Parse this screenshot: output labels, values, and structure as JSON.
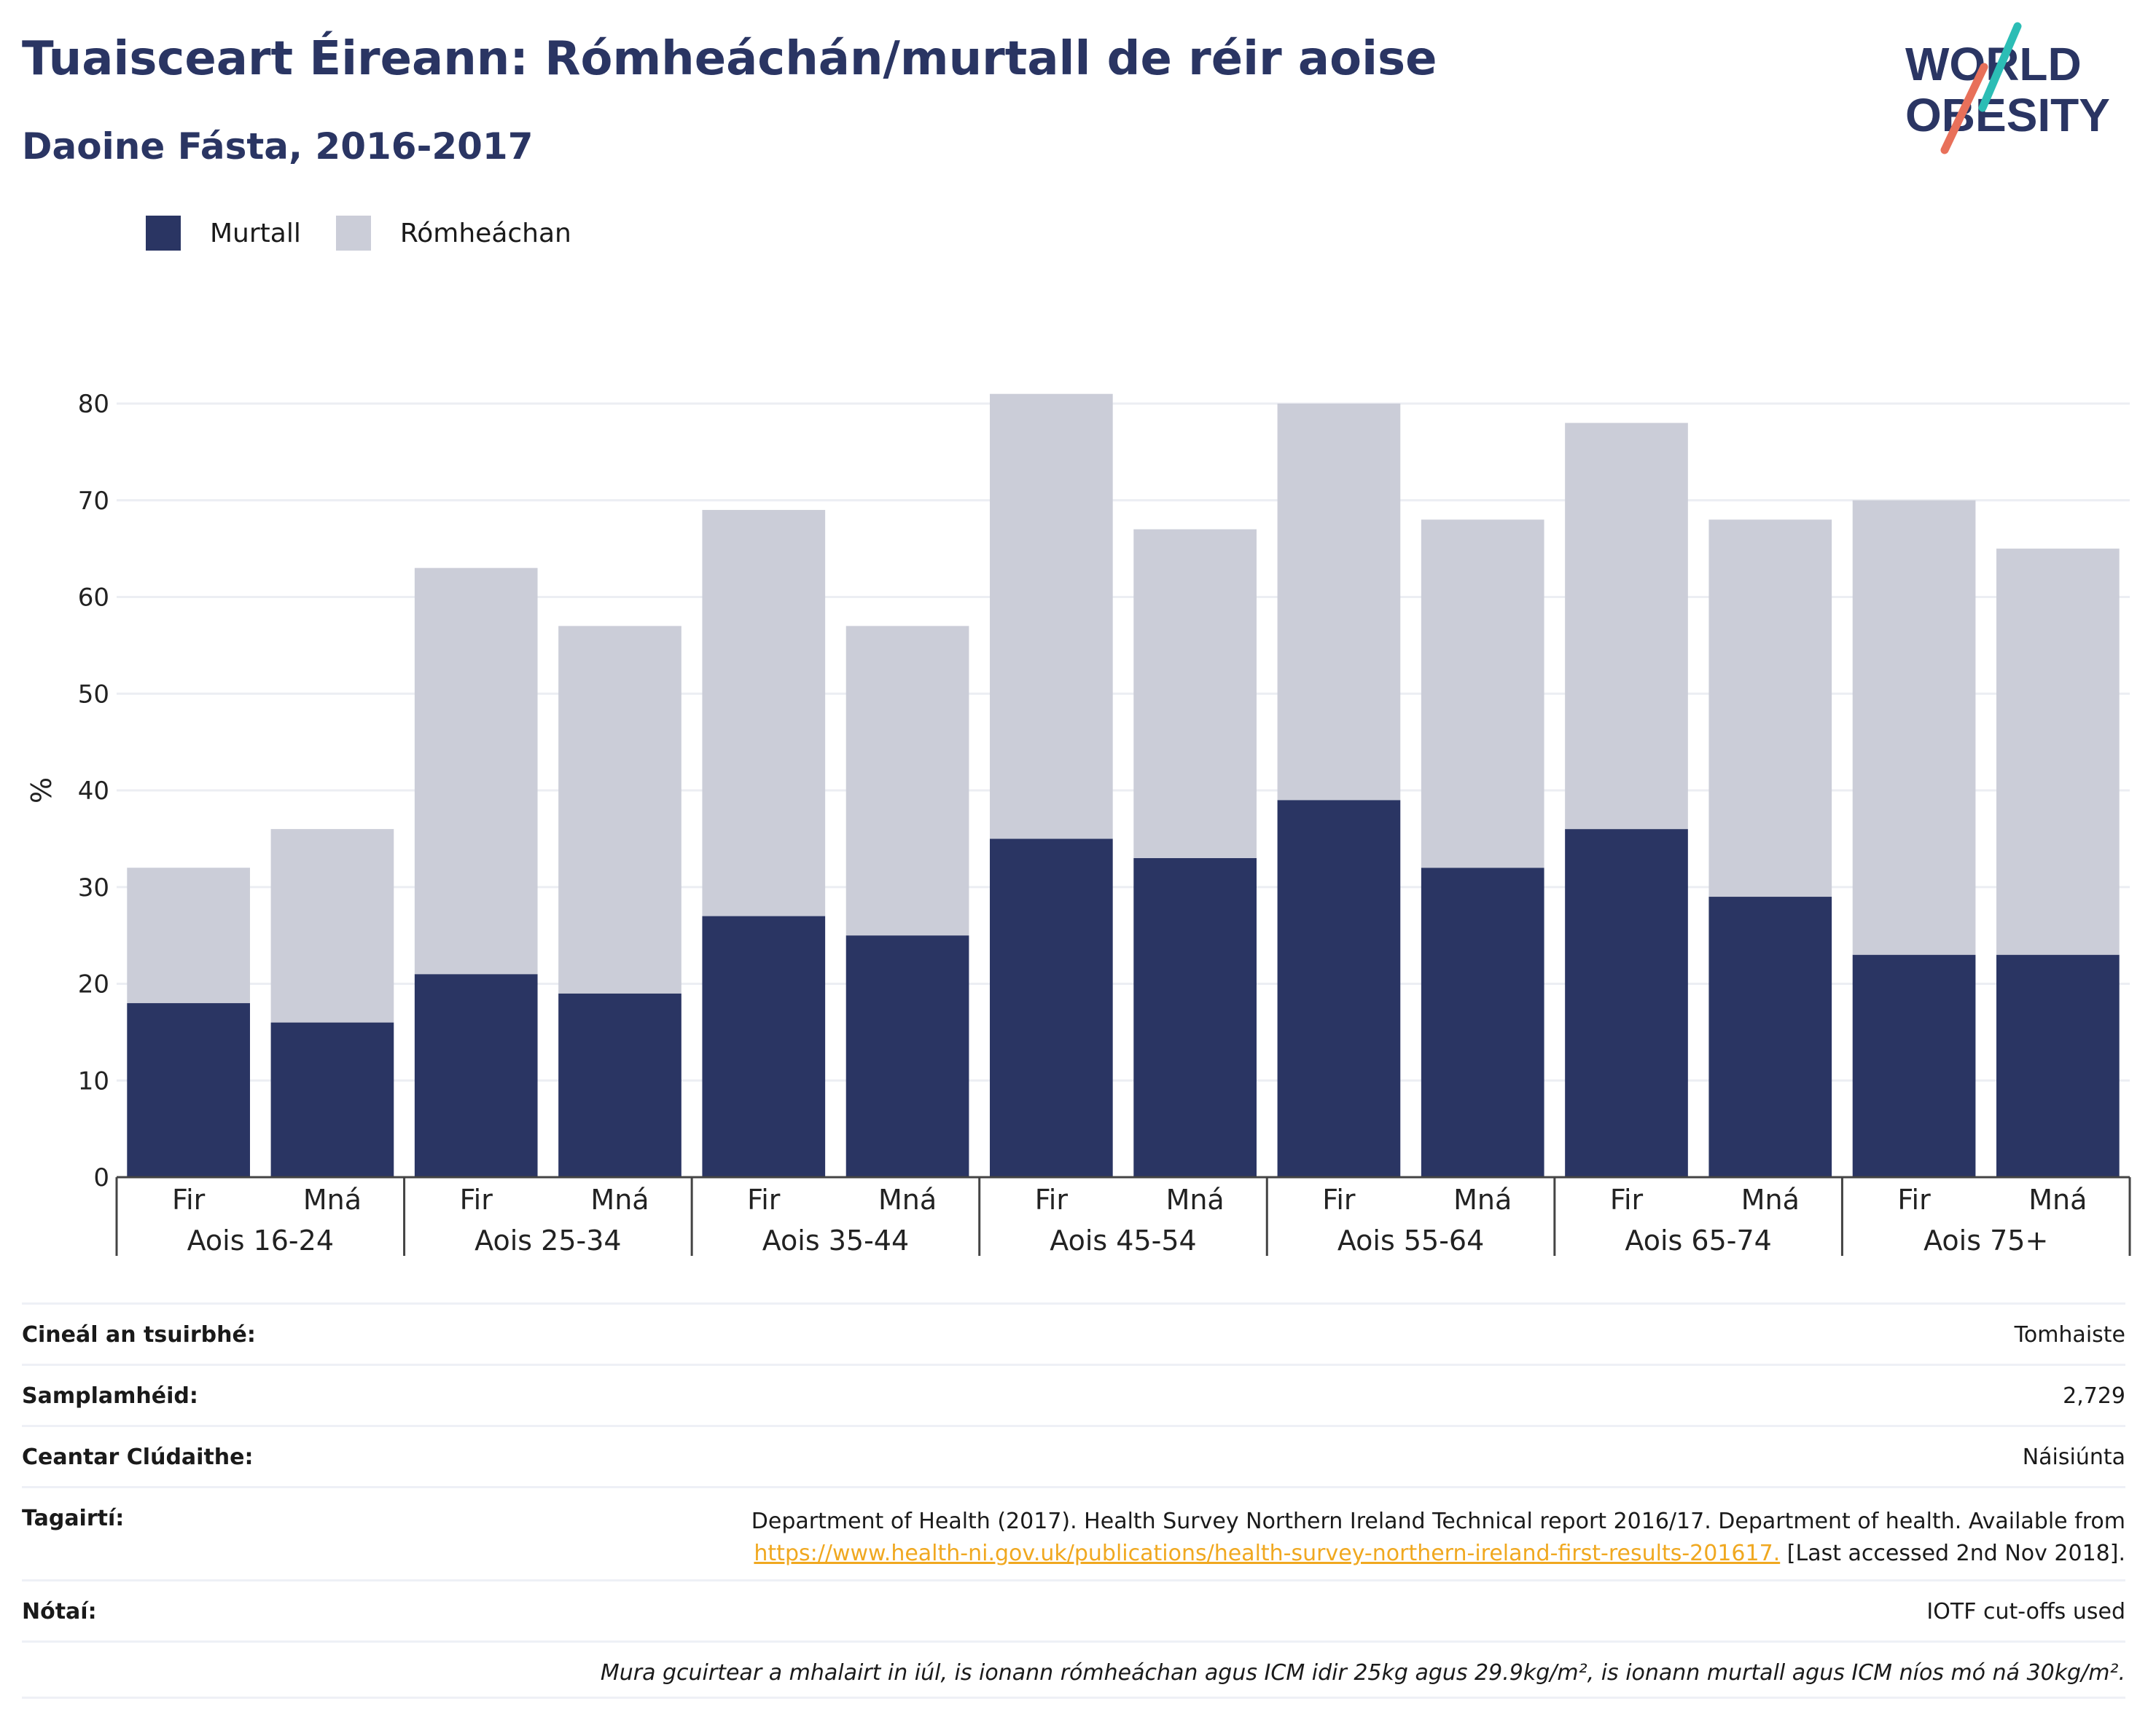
{
  "title": "Tuaisceart Éireann: Rómheáchán/murtall de réir aoise",
  "subtitle": "Daoine Fásta, 2016-2017",
  "logo": {
    "line1": "WORLD",
    "line2": "OBESITY"
  },
  "colors": {
    "murtall": "#2a3563",
    "romheachan": "#cbcdd8",
    "title": "#2a3563",
    "link": "#f0a820",
    "logo_slash_red": "#e8705a",
    "logo_slash_teal": "#2cbdb5"
  },
  "legend": [
    {
      "label": "Murtall",
      "color": "#2a3563"
    },
    {
      "label": "Rómheáchan",
      "color": "#cbcdd8"
    }
  ],
  "chart_data": {
    "type": "bar",
    "stacked": true,
    "title": "Tuaisceart Éireann: Rómheáchán/murtall de réir aoise",
    "subtitle": "Daoine Fásta, 2016-2017",
    "ylabel": "%",
    "ylim": [
      0,
      80
    ],
    "yticks": [
      0,
      10,
      20,
      30,
      40,
      50,
      60,
      70,
      80
    ],
    "grid": true,
    "legend_position": "top-left",
    "groups": [
      "Aois 16-24",
      "Aois 25-34",
      "Aois 35-44",
      "Aois 45-54",
      "Aois 55-64",
      "Aois 65-74",
      "Aois 75+"
    ],
    "subcategories": [
      "Fir",
      "Mná"
    ],
    "categories": [
      "Fir",
      "Mná",
      "Fir",
      "Mná",
      "Fir",
      "Mná",
      "Fir",
      "Mná",
      "Fir",
      "Mná",
      "Fir",
      "Mná",
      "Fir",
      "Mná"
    ],
    "series": [
      {
        "name": "Murtall",
        "values": [
          18,
          16,
          21,
          19,
          27,
          25,
          35,
          33,
          39,
          32,
          36,
          29,
          23,
          23
        ]
      },
      {
        "name": "Rómheáchan",
        "values": [
          14,
          20,
          42,
          38,
          42,
          32,
          46,
          34,
          41,
          36,
          42,
          39,
          47,
          42
        ]
      }
    ]
  },
  "info": {
    "rows": [
      {
        "label": "Cineál an tsuirbhé:",
        "value": "Tomhaiste"
      },
      {
        "label": "Samplamhéid:",
        "value": "2,729"
      },
      {
        "label": "Ceantar Clúdaithe:",
        "value": "Náisiúnta"
      }
    ],
    "references": {
      "label": "Tagairtí:",
      "text1": "Department of Health (2017). Health Survey Northern Ireland Technical report 2016/17. Department of health. Available from",
      "link": "https://www.health-ni.gov.uk/publications/health-survey-northern-ireland-first-results-201617.",
      "text2": "[Last accessed 2nd Nov 2018]."
    },
    "notes": {
      "label": "Nótaí:",
      "value": "IOTF cut-offs used"
    },
    "footnote": "Mura gcuirtear a mhalairt in iúl, is ionann rómheáchan agus ICM idir 25kg agus 29.9kg/m², is ionann murtall agus ICM níos mó ná 30kg/m²."
  }
}
